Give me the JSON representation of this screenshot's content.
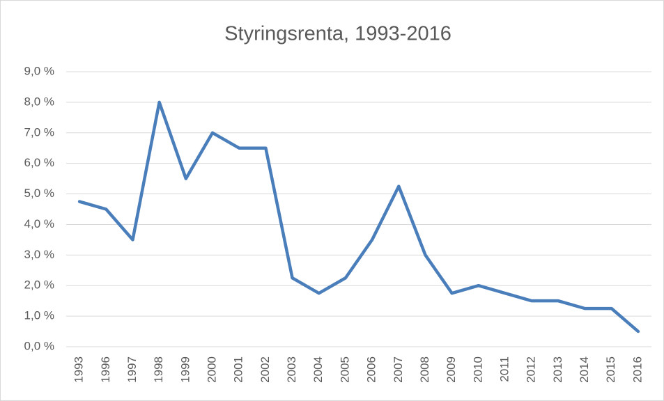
{
  "chart_data": {
    "type": "line",
    "title": "Styringsrenta, 1993-2016",
    "categories": [
      "1993",
      "1996",
      "1997",
      "1998",
      "1999",
      "2000",
      "2001",
      "2002",
      "2003",
      "2004",
      "2005",
      "2006",
      "2007",
      "2008",
      "2009",
      "2010",
      "2011",
      "2012",
      "2013",
      "2014",
      "2015",
      "2016"
    ],
    "series": [
      {
        "color": "#4a7ebb",
        "values": [
          4.75,
          4.5,
          3.5,
          8.0,
          5.5,
          7.0,
          6.5,
          6.5,
          2.25,
          1.75,
          2.25,
          3.5,
          5.25,
          3.0,
          1.75,
          2.0,
          1.75,
          1.5,
          1.5,
          1.25,
          1.25,
          0.5
        ]
      }
    ],
    "ylim": [
      0,
      9
    ],
    "yticks": [
      {
        "value": 0,
        "label": "0,0 %"
      },
      {
        "value": 1,
        "label": "1,0 %"
      },
      {
        "value": 2,
        "label": "2,0 %"
      },
      {
        "value": 3,
        "label": "3,0 %"
      },
      {
        "value": 4,
        "label": "4,0 %"
      },
      {
        "value": 5,
        "label": "5,0 %"
      },
      {
        "value": 6,
        "label": "6,0 %"
      },
      {
        "value": 7,
        "label": "7,0 %"
      },
      {
        "value": 8,
        "label": "8,0 %"
      },
      {
        "value": 9,
        "label": "9,0 %"
      }
    ],
    "grid": true
  }
}
